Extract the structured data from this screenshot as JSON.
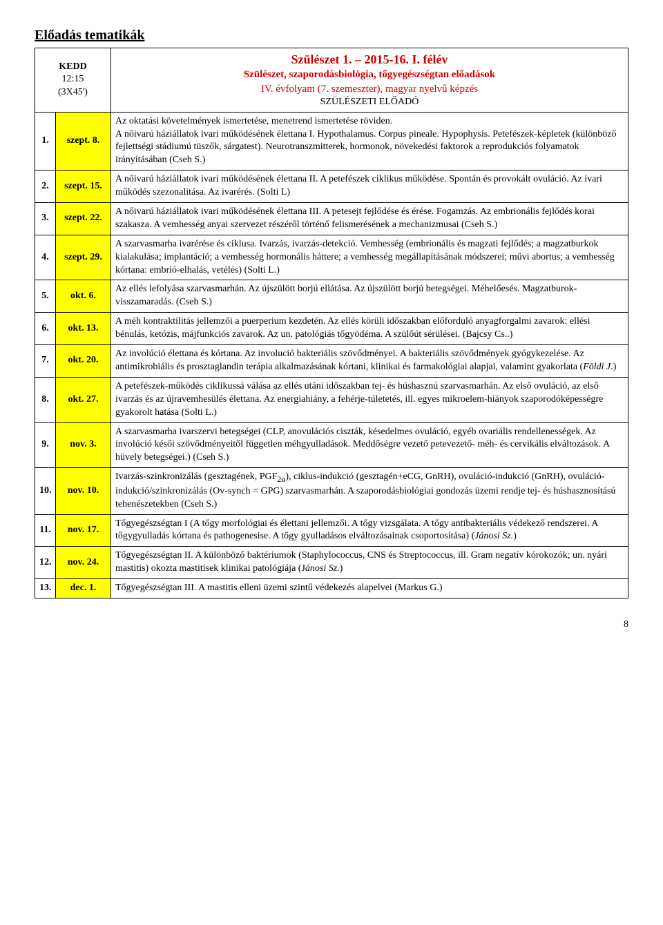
{
  "page_title": "Előadás tematikák",
  "header": {
    "day": "KEDD",
    "time": "12:15",
    "duration": "(3X45')",
    "title": "Szülészet 1. – 2015-16. I. félév",
    "sub1": "Szülészet, szaporodásbiológia, tőgyegészségtan előadások",
    "sub2": "IV. évfolyam (7. szemeszter), magyar nyelvű képzés",
    "sub3": "SZÜLÉSZETI ELŐADÓ"
  },
  "rows": [
    {
      "num": "1.",
      "date": "szept. 8.",
      "yellow": true,
      "content": "Az oktatási követelmények ismertetése, menetrend ismertetése röviden.\nA nőivarú háziállatok ivari működésének élettana I. Hypothalamus. Corpus pineale. Hypophysis. Petefészek-képletek (különböző fejlettségi stádiumú tüszők, sárgatest). Neurotranszmitterek, hormonok, növekedési faktorok a reprodukciós folyamatok irányításában (Cseh S.)"
    },
    {
      "num": "2.",
      "date": "szept. 15.",
      "yellow": true,
      "content": "A nőivarú háziállatok ivari működésének élettana II. A petefészek ciklikus működése. Spontán és provokált ovuláció. Az ivari működés szezonalitása. Az ivarérés. (Solti L)"
    },
    {
      "num": "3.",
      "date": "szept. 22.",
      "yellow": true,
      "content": "A nőivarú háziállatok ivari működésének élettana III. A petesejt fejlődése és érése. Fogamzás. Az embrionális fejlődés korai szakasza. A vemhesség anyai szervezet részéről történő felismerésének a mechanizmusai (Cseh S.)"
    },
    {
      "num": "4.",
      "date": "szept. 29.",
      "yellow": true,
      "content": "A szarvasmarha ivarérése és ciklusa. Ivarzás, ivarzás-detekció. Vemhesség (embrionális és magzati fejlődés; a magzatburkok kialakulása; implantáció; a vemhesség hormonális háttere; a vemhesség megállapításának módszerei; művi abortus; a vemhesség kórtana: embrió-elhalás, vetélés) (Solti L.)"
    },
    {
      "num": "5.",
      "date": "okt. 6.",
      "yellow": true,
      "content": "Az ellés lefolyása szarvasmarhán. Az újszülött borjú ellátása. Az újszülött borjú betegségei. Méhelőesés. Magzatburok-visszamaradás. (Cseh S.)"
    },
    {
      "num": "6.",
      "date": "okt. 13.",
      "yellow": true,
      "content": "A méh kontraktilitás jellemzői a puerperium kezdetén. Az ellés körüli időszakban előforduló anyagforgalmi zavarok: ellési bénulás, ketózis, májfunkciós zavarok. Az un. patológiás tőgyödéma. A szülőút sérülései. (Bajcsy Cs..)"
    },
    {
      "num": "7.",
      "date": "okt. 20.",
      "yellow": true,
      "content_html": "Az involúció élettana és kórtana. Az involució bakteriális szövődményei. A bakteriális szövődmények gyógykezelése. Az antimikrobiális és prosztaglandin terápia alkalmazásának kórtani, klinikai és farmakológiai alapjai, valamint gyakorlata (<span class=\"italic\">Földi J.</span>)"
    },
    {
      "num": "8.",
      "date": "okt. 27.",
      "yellow": true,
      "content": "A petefészek-működés ciklikussá válása az ellés utáni időszakban tej- és húshasznú szarvasmarhán. Az első ovuláció, az első ivarzás és az újravemhesülés élettana. Az energiahiány, a fehérje-túletetés, ill. egyes mikroelem-hiányok szaporodóképességre gyakorolt hatása (Solti L.)"
    },
    {
      "num": "9.",
      "date": "nov. 3.",
      "yellow": true,
      "content": "A szarvasmarha ivarszervi betegségei (CLP, anovulációs ciszták, késedelmes ovuláció, egyéb ovariális rendellenességek. Az involúció késői szövődményeitől független méhgyulladások. Meddőségre vezető petevezető- méh- és cervikális elváltozások. A hüvely betegségei.) (Cseh S.)"
    },
    {
      "num": "10.",
      "date": "nov. 10.",
      "yellow": true,
      "content_html": "Ivarzás-szinkronizálás (gesztagének, PGF<sub>2α</sub>), ciklus-indukció (gesztagén+eCG, GnRH), ovuláció-indukció (GnRH), ovuláció-indukció/szinkronizálás (Ov-synch = GPG) szarvasmarhán. A szaporodásbiológiai gondozás üzemi rendje tej- és húshasznosítású tehenészetekben (Cseh S.)"
    },
    {
      "num": "11.",
      "date": "nov. 17.",
      "yellow": true,
      "content_html": "Tőgyegészségtan I (A tőgy morfológiai és élettani jellemzői. A tőgy vizsgálata. A tőgy antibakteriális védekező rendszerei. A tőgygyulladás kórtana és pathogenesise. A tőgy gyulladásos elváltozásainak csoportosítása) (<span class=\"italic\">Jánosi Sz.</span>)"
    },
    {
      "num": "12.",
      "date": "nov. 24.",
      "yellow": true,
      "content_html": "Tőgyegészségtan II. A különböző baktériumok (Staphylococcus, CNS és Streptococcus, ill. Gram negatív kórokozók; un. nyári mastitis) okozta mastitisek klinikai patológiája (J<span class=\"italic\">ánosi Sz.</span>)"
    },
    {
      "num": "13.",
      "date": "dec. 1.",
      "yellow": true,
      "content": "Tőgyegészségtan III. A mastitis elleni üzemi szintű védekezés alapelvei (Markus G.)"
    }
  ],
  "pagenum": "8"
}
